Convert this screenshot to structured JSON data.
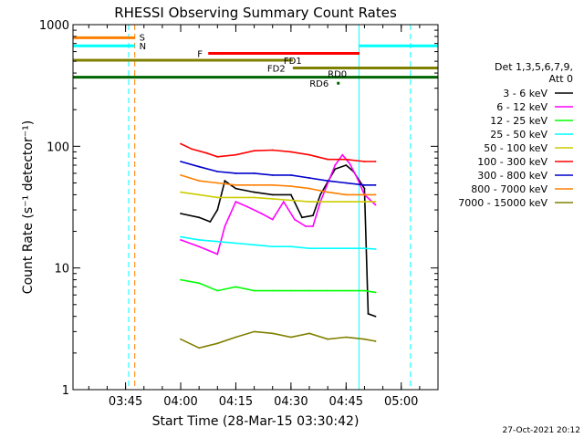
{
  "chart_data": {
    "type": "line",
    "title": "RHESSI Observing Summary Count Rates",
    "xlabel": "Start Time (28-Mar-15 03:30:42)",
    "ylabel": "Count Rate (s⁻¹ detector⁻¹)",
    "y_scale": "log",
    "ylim": [
      1,
      1000
    ],
    "xlim": [
      "03:30:42",
      "05:10:00"
    ],
    "x_tick_labels": [
      "03:45",
      "04:00",
      "04:15",
      "04:30",
      "04:45",
      "05:00"
    ],
    "y_tick_labels": [
      "1",
      "10",
      "100",
      "1000"
    ],
    "legend_title": [
      "Det 1,3,5,6,7,9,",
      "Att 0"
    ],
    "legend_position": "right",
    "series": [
      {
        "name": "3 - 6 keV",
        "color": "#000000",
        "points": [
          [
            "04:00",
            28
          ],
          [
            "04:05",
            26
          ],
          [
            "04:08",
            24
          ],
          [
            "04:10",
            30
          ],
          [
            "04:12",
            52
          ],
          [
            "04:15",
            45
          ],
          [
            "04:20",
            42
          ],
          [
            "04:25",
            40
          ],
          [
            "04:30",
            40
          ],
          [
            "04:33",
            26
          ],
          [
            "04:36",
            27
          ],
          [
            "04:38",
            40
          ],
          [
            "04:42",
            65
          ],
          [
            "04:45",
            70
          ],
          [
            "04:47",
            62
          ],
          [
            "04:50",
            45
          ],
          [
            "04:51",
            4.2
          ],
          [
            "04:53",
            4
          ]
        ]
      },
      {
        "name": "6 - 12 keV",
        "color": "#ff00ff",
        "points": [
          [
            "04:00",
            17
          ],
          [
            "04:05",
            15
          ],
          [
            "04:10",
            13
          ],
          [
            "04:12",
            22
          ],
          [
            "04:15",
            35
          ],
          [
            "04:18",
            32
          ],
          [
            "04:22",
            28
          ],
          [
            "04:25",
            25
          ],
          [
            "04:28",
            35
          ],
          [
            "04:31",
            25
          ],
          [
            "04:34",
            22
          ],
          [
            "04:36",
            22
          ],
          [
            "04:38",
            35
          ],
          [
            "04:42",
            70
          ],
          [
            "04:44",
            85
          ],
          [
            "04:46",
            72
          ],
          [
            "04:48",
            55
          ],
          [
            "04:50",
            40
          ],
          [
            "04:53",
            33
          ]
        ]
      },
      {
        "name": "12 - 25 keV",
        "color": "#00ff00",
        "points": [
          [
            "04:00",
            8
          ],
          [
            "04:05",
            7.5
          ],
          [
            "04:10",
            6.5
          ],
          [
            "04:15",
            7
          ],
          [
            "04:20",
            6.5
          ],
          [
            "04:25",
            6.5
          ],
          [
            "04:30",
            6.5
          ],
          [
            "04:35",
            6.5
          ],
          [
            "04:40",
            6.5
          ],
          [
            "04:45",
            6.5
          ],
          [
            "04:50",
            6.5
          ],
          [
            "04:53",
            6.3
          ]
        ]
      },
      {
        "name": "25 - 50 keV",
        "color": "#00ffff",
        "points": [
          [
            "04:00",
            18
          ],
          [
            "04:05",
            17
          ],
          [
            "04:10",
            16.5
          ],
          [
            "04:15",
            16
          ],
          [
            "04:20",
            15.5
          ],
          [
            "04:25",
            15
          ],
          [
            "04:30",
            15
          ],
          [
            "04:35",
            14.5
          ],
          [
            "04:40",
            14.5
          ],
          [
            "04:45",
            14.5
          ],
          [
            "04:50",
            14.5
          ],
          [
            "04:53",
            14.3
          ]
        ]
      },
      {
        "name": "50 - 100 keV",
        "color": "#cccc00",
        "points": [
          [
            "04:00",
            42
          ],
          [
            "04:05",
            40
          ],
          [
            "04:10",
            38
          ],
          [
            "04:15",
            38
          ],
          [
            "04:20",
            38
          ],
          [
            "04:25",
            37
          ],
          [
            "04:30",
            36
          ],
          [
            "04:35",
            35
          ],
          [
            "04:40",
            35
          ],
          [
            "04:45",
            35
          ],
          [
            "04:50",
            35
          ],
          [
            "04:53",
            35
          ]
        ]
      },
      {
        "name": "100 - 300 keV",
        "color": "#ff0000",
        "points": [
          [
            "04:00",
            105
          ],
          [
            "04:03",
            95
          ],
          [
            "04:07",
            88
          ],
          [
            "04:10",
            82
          ],
          [
            "04:15",
            85
          ],
          [
            "04:20",
            92
          ],
          [
            "04:25",
            93
          ],
          [
            "04:30",
            90
          ],
          [
            "04:35",
            85
          ],
          [
            "04:40",
            78
          ],
          [
            "04:45",
            78
          ],
          [
            "04:50",
            75
          ],
          [
            "04:53",
            75
          ]
        ]
      },
      {
        "name": "300 - 800 keV",
        "color": "#0000cc",
        "points": [
          [
            "04:00",
            75
          ],
          [
            "04:05",
            68
          ],
          [
            "04:10",
            62
          ],
          [
            "04:15",
            60
          ],
          [
            "04:20",
            60
          ],
          [
            "04:25",
            58
          ],
          [
            "04:30",
            58
          ],
          [
            "04:35",
            55
          ],
          [
            "04:40",
            52
          ],
          [
            "04:45",
            50
          ],
          [
            "04:50",
            48
          ],
          [
            "04:53",
            48
          ]
        ]
      },
      {
        "name": "800 - 7000 keV",
        "color": "#ff8000",
        "points": [
          [
            "04:00",
            58
          ],
          [
            "04:05",
            52
          ],
          [
            "04:10",
            50
          ],
          [
            "04:15",
            48
          ],
          [
            "04:20",
            48
          ],
          [
            "04:25",
            48
          ],
          [
            "04:30",
            47
          ],
          [
            "04:35",
            45
          ],
          [
            "04:40",
            42
          ],
          [
            "04:45",
            40
          ],
          [
            "04:50",
            40
          ],
          [
            "04:53",
            40
          ]
        ]
      },
      {
        "name": "7000 - 15000 keV",
        "color": "#808000",
        "points": [
          [
            "04:00",
            2.6
          ],
          [
            "04:05",
            2.2
          ],
          [
            "04:10",
            2.4
          ],
          [
            "04:15",
            2.7
          ],
          [
            "04:20",
            3
          ],
          [
            "04:25",
            2.9
          ],
          [
            "04:30",
            2.7
          ],
          [
            "04:35",
            2.9
          ],
          [
            "04:40",
            2.6
          ],
          [
            "04:45",
            2.7
          ],
          [
            "04:50",
            2.6
          ],
          [
            "04:53",
            2.5
          ]
        ]
      }
    ],
    "annotation_bars": [
      {
        "label": "S",
        "color": "#ff8000",
        "start": "03:30:42",
        "end": "03:47:30",
        "level": 780
      },
      {
        "label": "N",
        "color": "#00ffff",
        "start": "03:30:42",
        "end": "03:47:30",
        "level": 670
      },
      {
        "label": "F",
        "color": "#ff0000",
        "start": "04:07:30",
        "end": "04:48:40",
        "level": 580
      },
      {
        "label": "FD1",
        "color": "#808000",
        "start": "03:30:42",
        "end": "04:30:30",
        "level": 510
      },
      {
        "label": "FD2",
        "color": "#808000",
        "start": "04:30:30",
        "end": "05:10:00",
        "level": 440
      },
      {
        "label": "RD0",
        "color": "#006400",
        "start": "03:30:42",
        "end": "05:10:00",
        "level": 370
      },
      {
        "label": "RD6",
        "color": "#006400",
        "start": "04:42:30",
        "end": "04:42:40",
        "level": 330
      },
      {
        "label": "",
        "color": "#00ffff",
        "start": "04:48:30",
        "end": "05:10:00",
        "level": 670
      }
    ],
    "vertical_markers": [
      {
        "color": "#00ffff",
        "style": "solid",
        "time": "03:30:42"
      },
      {
        "color": "#00ffff",
        "style": "dashed",
        "time": "03:45:50"
      },
      {
        "color": "#ff8000",
        "style": "dashed",
        "time": "03:47:30"
      },
      {
        "color": "#00ffff",
        "style": "solid",
        "time": "04:48:30"
      },
      {
        "color": "#00ffff",
        "style": "dashed",
        "time": "05:02:30"
      }
    ],
    "footer_date": "27-Oct-2021 20:12"
  }
}
